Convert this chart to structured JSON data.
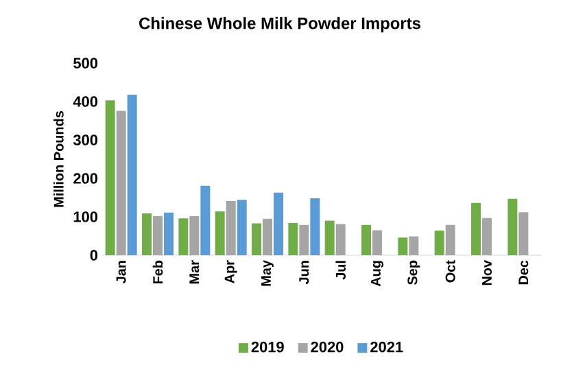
{
  "chart_data": {
    "type": "bar",
    "title": "Chinese Whole Milk Powder Imports",
    "ylabel": "Million Pounds",
    "categories": [
      "Jan",
      "Feb",
      "Mar",
      "Apr",
      "May",
      "Jun",
      "Jul",
      "Aug",
      "Sep",
      "Oct",
      "Nov",
      "Dec"
    ],
    "series": [
      {
        "name": "2019",
        "color": "#70ad47",
        "values": [
          403,
          109,
          96,
          114,
          83,
          84,
          90,
          79,
          46,
          64,
          136,
          147
        ]
      },
      {
        "name": "2020",
        "color": "#a5a5a5",
        "values": [
          376,
          102,
          102,
          141,
          95,
          79,
          81,
          65,
          49,
          79,
          97,
          112
        ]
      },
      {
        "name": "2021",
        "color": "#5b9bd5",
        "values": [
          418,
          111,
          181,
          144,
          163,
          148,
          null,
          null,
          null,
          null,
          null,
          null
        ]
      }
    ],
    "ylim": [
      0,
      500
    ],
    "yticks": [
      0,
      100,
      200,
      300,
      400,
      500
    ],
    "legend": "bottom"
  }
}
